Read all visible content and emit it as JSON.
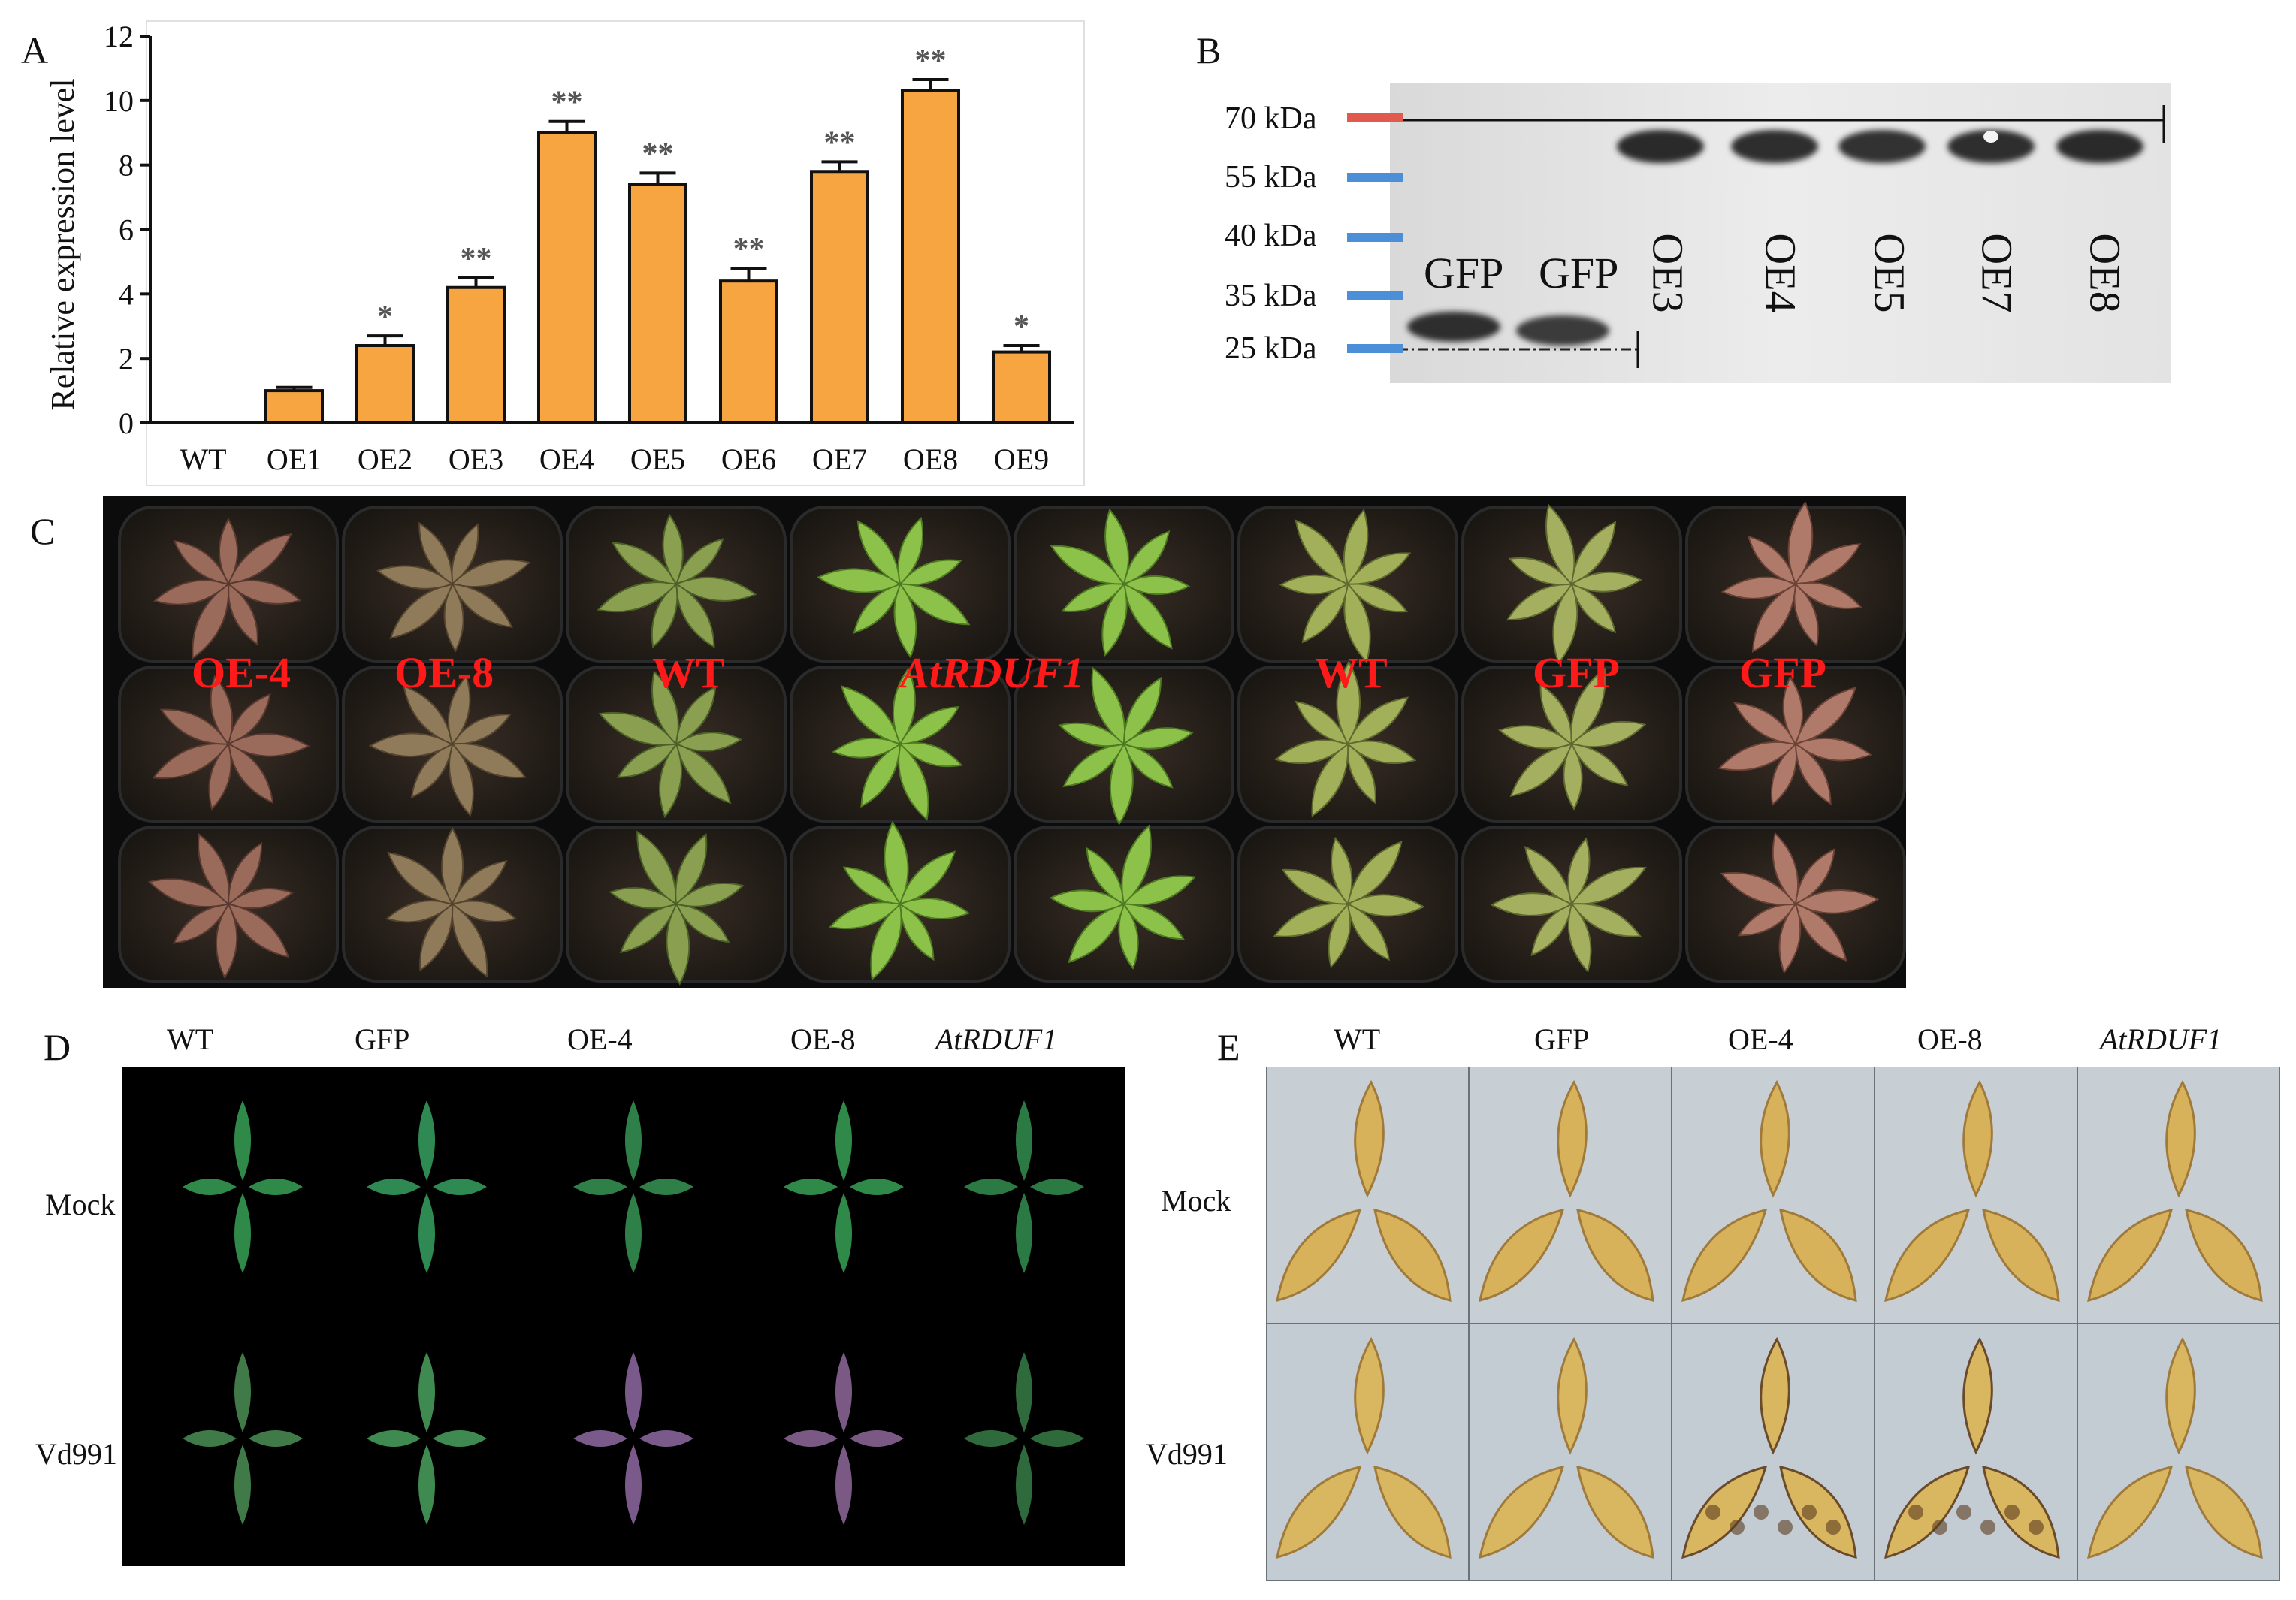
{
  "panels": {
    "A": {
      "letter": "A"
    },
    "B": {
      "letter": "B"
    },
    "C": {
      "letter": "C"
    },
    "D": {
      "letter": "D"
    },
    "E": {
      "letter": "E"
    }
  },
  "chart_data": {
    "type": "bar",
    "title": "",
    "xlabel": "",
    "ylabel": "Relative expression level",
    "categories": [
      "WT",
      "OE1",
      "OE2",
      "OE3",
      "OE4",
      "OE5",
      "OE6",
      "OE7",
      "OE8",
      "OE9"
    ],
    "values": [
      0.0,
      1.0,
      2.4,
      4.2,
      9.0,
      7.4,
      4.4,
      7.8,
      10.3,
      2.2
    ],
    "errors": [
      0.0,
      0.1,
      0.3,
      0.3,
      0.35,
      0.35,
      0.4,
      0.3,
      0.35,
      0.2
    ],
    "significance": [
      "",
      "",
      "*",
      "**",
      "**",
      "**",
      "**",
      "**",
      "**",
      "*"
    ],
    "ylim": [
      0,
      12
    ],
    "yticks": [
      "0",
      "2",
      "4",
      "6",
      "8",
      "10",
      "12"
    ],
    "bar_color": "#f7a541",
    "grid": false
  },
  "western_blot": {
    "markers": [
      {
        "label": "70 kDa",
        "color": "#e05a4e"
      },
      {
        "label": "55 kDa",
        "color": "#4a8fd8"
      },
      {
        "label": "40 kDa",
        "color": "#4a8fd8"
      },
      {
        "label": "35 kDa",
        "color": "#4a8fd8"
      },
      {
        "label": "25 kDa",
        "color": "#4a8fd8"
      }
    ],
    "lanes": [
      "GFP",
      "GFP",
      "OE3",
      "OE4",
      "OE5",
      "OE7",
      "OE8"
    ]
  },
  "tray": {
    "labels": [
      "OE-4",
      "OE-8",
      "WT",
      "AtRDUF1",
      "WT",
      "GFP",
      "GFP"
    ],
    "label_color": "#ff1a1a"
  },
  "panel_d": {
    "columns": [
      "WT",
      "GFP",
      "OE-4",
      "OE-8",
      "AtRDUF1"
    ],
    "rows": [
      "Mock",
      "Vd991"
    ]
  },
  "panel_e": {
    "columns": [
      "WT",
      "GFP",
      "OE-4",
      "OE-8",
      "AtRDUF1"
    ],
    "rows": [
      "Mock",
      "Vd991"
    ]
  }
}
